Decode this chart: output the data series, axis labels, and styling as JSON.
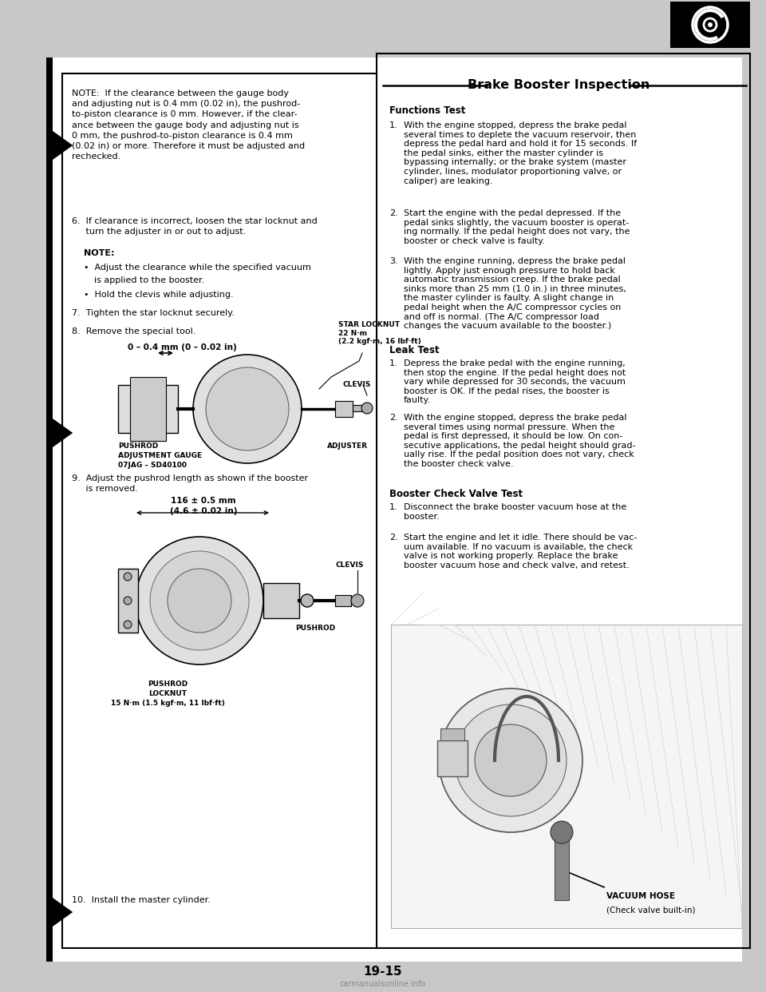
{
  "page_number": "19-15",
  "bg_color": "#ffffff",
  "left_note_text": "NOTE:  If the clearance between the gauge body\nand adjusting nut is 0.4 mm (0.02 in), the pushrod-\nto-piston clearance is 0 mm. However, if the clear-\nance between the gauge body and adjusting nut is\n0 mm, the pushrod-to-piston clearance is 0.4 mm\n(0.02 in) or more. Therefore it must be adjusted and\nrechecked.",
  "step6_text": "6.  If clearance is incorrect, loosen the star locknut and\n     turn the adjuster in or out to adjust.",
  "note2_title": "NOTE:",
  "note2_b1_line1": "Adjust the clearance while the specified vacuum",
  "note2_b1_line2": "is applied to the booster.",
  "note2_b2": "Hold the clevis while adjusting.",
  "step7_text": "7.  Tighten the star locknut securely.",
  "step8_text": "8.  Remove the special tool.",
  "dim_label1a": "0 – 0.4 mm (0 – 0.02 in)",
  "star_locknut_label": "STAR LOCKNUT\n22 N·m\n(2.2 kgf·m, 16 lbf·ft)",
  "clevis_label1": "CLEVIS",
  "pushrod_adj_label1": "PUSHROD",
  "pushrod_adj_label2": "ADJUSTMENT GAUGE",
  "pushrod_adj_label3": "07JAG – SD40100",
  "adjuster_label": "ADJUSTER",
  "step9_text": "9.  Adjust the pushrod length as shown if the booster\n     is removed.",
  "dim_label2a": "116 ± 0.5 mm",
  "dim_label2b": "(4.6 ± 0.02 in)",
  "clevis_label2": "CLEVIS",
  "pushrod_label2": "PUSHROD",
  "pushrod_locknut_label1": "PUSHROD",
  "pushrod_locknut_label2": "LOCKNUT",
  "pushrod_locknut_label3": "15 N·m (1.5 kgf·m, 11 lbf·ft)",
  "step10_text": "10.  Install the master cylinder.",
  "right_title": "Brake Booster Inspection",
  "functions_test_title": "Functions Test",
  "ft1_num": "1.",
  "ft1": "With the engine stopped, depress the brake pedal\nseveral times to deplete the vacuum reservoir, then\ndepress the pedal hard and hold it for 15 seconds. If\nthe pedal sinks, either the master cylinder is\nbypassing internally; or the brake system (master\ncylinder, lines, modulator proportioning valve, or\ncaliper) are leaking.",
  "ft2_num": "2.",
  "ft2": "Start the engine with the pedal depressed. If the\npedal sinks slightly, the vacuum booster is operat-\ning normally. If the pedal height does not vary, the\nbooster or check valve is faulty.",
  "ft3_num": "3.",
  "ft3": "With the engine running, depress the brake pedal\nlightly. Apply just enough pressure to hold back\nautomatic transmission creep. If the brake pedal\nsinks more than 25 mm (1.0 in.) in three minutes,\nthe master cylinder is faulty. A slight change in\npedal height when the A/C compressor cycles on\nand off is normal. (The A/C compressor load\nchanges the vacuum available to the booster.)",
  "leak_test_title": "Leak Test",
  "lt1_num": "1.",
  "lt1": "Depress the brake pedal with the engine running,\nthen stop the engine. If the pedal height does not\nvary while depressed for 30 seconds, the vacuum\nbooster is OK. If the pedal rises, the booster is\nfaulty.",
  "lt2_num": "2.",
  "lt2": "With the engine stopped, depress the brake pedal\nseveral times using normal pressure. When the\npedal is first depressed, it should be low. On con-\nsecutive applications, the pedal height should grad-\nually rise. If the pedal position does not vary, check\nthe booster check valve.",
  "booster_check_title": "Booster Check Valve Test",
  "bct1_num": "1.",
  "bct1": "Disconnect the brake booster vacuum hose at the\nbooster.",
  "bct2_num": "2.",
  "bct2": "Start the engine and let it idle. There should be vac-\nuum available. If no vacuum is available, the check\nvalve is not working properly. Replace the brake\nbooster vacuum hose and check valve, and retest.",
  "vacuum_hose_label": "VACUUM HOSE",
  "vacuum_hose_label2": "(Check valve built-in)"
}
